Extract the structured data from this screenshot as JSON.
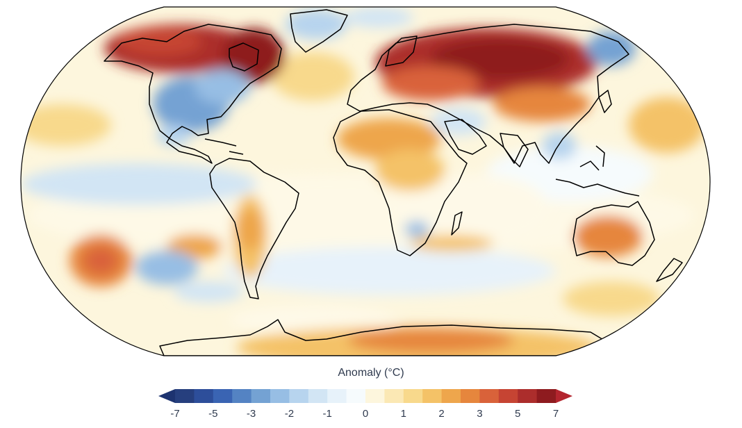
{
  "legend": {
    "title": "Anomaly (°C)",
    "tick_labels": [
      "-7",
      "-5",
      "-3",
      "-2",
      "-1",
      "0",
      "1",
      "2",
      "3",
      "5",
      "7"
    ],
    "bins": [
      -7,
      -6,
      -5,
      -4,
      -3,
      -2.5,
      -2,
      -1.5,
      -1,
      -0.5,
      0,
      0.5,
      1,
      1.5,
      2,
      2.5,
      3,
      4,
      5,
      6,
      7
    ],
    "colors": [
      "#263f7e",
      "#2d4e9a",
      "#3a64b3",
      "#5483c3",
      "#74a2d3",
      "#97bee4",
      "#b7d4ee",
      "#d2e5f4",
      "#e7f2fa",
      "#f6fbfd",
      "#fdf6dd",
      "#fbe8b4",
      "#f8d98c",
      "#f4c267",
      "#eea64c",
      "#e6863d",
      "#d9623a",
      "#c64433",
      "#ac2d2c",
      "#8e1b1f"
    ],
    "under_color": "#1d3370",
    "over_color": "#b3252e"
  },
  "map": {
    "projection": "Robinson-like",
    "background_color": "#fdf6dd",
    "coastline_color": "#000000"
  }
}
